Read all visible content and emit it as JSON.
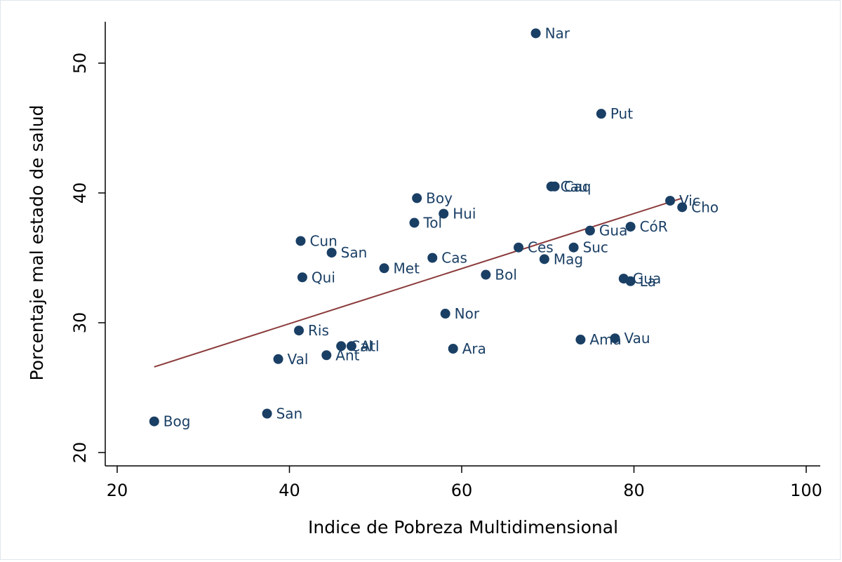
{
  "chart_data": {
    "type": "scatter",
    "title": "",
    "xlabel": "Indice de Pobreza Multidimensional",
    "ylabel": "Porcentaje mal estado de salud",
    "xlim": [
      20,
      100
    ],
    "ylim": [
      20,
      53
    ],
    "xticks": [
      20,
      40,
      60,
      80,
      100
    ],
    "yticks": [
      20,
      30,
      40,
      50
    ],
    "grid": false,
    "legend": "none",
    "colors": {
      "points": "#1a3f65",
      "fit_line": "#8b3a3a",
      "labels": "#1a3f65"
    },
    "points": [
      {
        "label": "Bog",
        "x": 24.3,
        "y": 22.4
      },
      {
        "label": "San",
        "x": 37.4,
        "y": 23.0
      },
      {
        "label": "Val",
        "x": 38.7,
        "y": 27.2
      },
      {
        "label": "Ris",
        "x": 41.1,
        "y": 29.4
      },
      {
        "label": "Qui",
        "x": 41.5,
        "y": 33.5
      },
      {
        "label": "Cun",
        "x": 41.3,
        "y": 36.3
      },
      {
        "label": "San",
        "x": 44.9,
        "y": 35.4
      },
      {
        "label": "Ant",
        "x": 44.3,
        "y": 27.5
      },
      {
        "label": "Cal",
        "x": 46.0,
        "y": 28.2
      },
      {
        "label": "Atl",
        "x": 47.2,
        "y": 28.2
      },
      {
        "label": "Met",
        "x": 51.0,
        "y": 34.2
      },
      {
        "label": "Tol",
        "x": 54.5,
        "y": 37.7
      },
      {
        "label": "Boy",
        "x": 54.8,
        "y": 39.6
      },
      {
        "label": "Cas",
        "x": 56.6,
        "y": 35.0
      },
      {
        "label": "Hui",
        "x": 57.9,
        "y": 38.4
      },
      {
        "label": "Nor",
        "x": 58.1,
        "y": 30.7
      },
      {
        "label": "Ara",
        "x": 59.0,
        "y": 28.0
      },
      {
        "label": "Bol",
        "x": 62.8,
        "y": 33.7
      },
      {
        "label": "Ces",
        "x": 66.6,
        "y": 35.8
      },
      {
        "label": "Nar",
        "x": 68.6,
        "y": 52.3
      },
      {
        "label": "Mag",
        "x": 69.6,
        "y": 34.9
      },
      {
        "label": "Cau",
        "x": 70.4,
        "y": 40.5
      },
      {
        "label": "Caq",
        "x": 70.8,
        "y": 40.5
      },
      {
        "label": "Suc",
        "x": 73.0,
        "y": 35.8
      },
      {
        "label": "Ama",
        "x": 73.8,
        "y": 28.7
      },
      {
        "label": "Gua",
        "x": 74.9,
        "y": 37.1
      },
      {
        "label": "Put",
        "x": 76.2,
        "y": 46.1
      },
      {
        "label": "Vau",
        "x": 77.8,
        "y": 28.8
      },
      {
        "label": "Gua",
        "x": 78.8,
        "y": 33.4
      },
      {
        "label": "La",
        "x": 79.6,
        "y": 33.2
      },
      {
        "label": "CóR",
        "x": 79.6,
        "y": 37.4
      },
      {
        "label": "Vic",
        "x": 84.2,
        "y": 39.4
      },
      {
        "label": "Cho",
        "x": 85.6,
        "y": 38.9
      }
    ],
    "fit_line": {
      "x": [
        24.3,
        85.6
      ],
      "y": [
        26.6,
        39.6
      ]
    }
  }
}
